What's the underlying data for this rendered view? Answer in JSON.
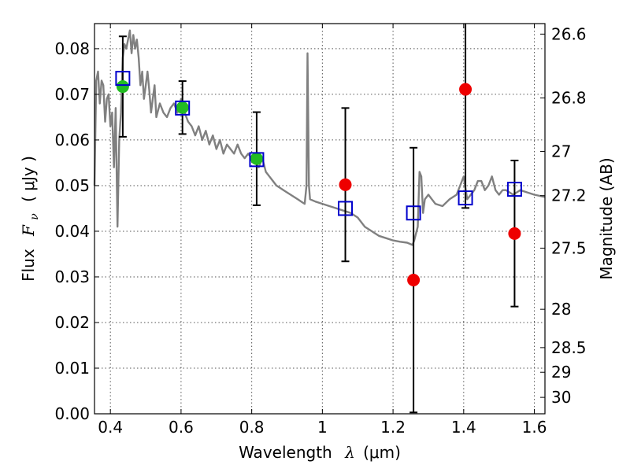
{
  "chart_data": {
    "type": "scatter",
    "title": "",
    "xlabel_text": "Wavelength",
    "xlabel_math": "λ",
    "xlabel_unit": "(μm)",
    "ylabel_text": "Flux",
    "ylabel_math": "F",
    "ylabel_sub": "ν",
    "ylabel_unit": "( μJy )",
    "y2label": "Magnitude (AB)",
    "xlim": [
      0.355,
      1.63
    ],
    "ylim": [
      0.0,
      0.0855
    ],
    "grid": true,
    "x_ticks": [
      {
        "value": 0.4,
        "label": "0.4"
      },
      {
        "value": 0.6,
        "label": "0.6"
      },
      {
        "value": 0.8,
        "label": "0.8"
      },
      {
        "value": 1.0,
        "label": "1"
      },
      {
        "value": 1.2,
        "label": "1.2"
      },
      {
        "value": 1.4,
        "label": "1.4"
      },
      {
        "value": 1.6,
        "label": "1.6"
      }
    ],
    "y_ticks": [
      {
        "value": 0.0,
        "label": "0.00"
      },
      {
        "value": 0.01,
        "label": "0.01"
      },
      {
        "value": 0.02,
        "label": "0.02"
      },
      {
        "value": 0.03,
        "label": "0.03"
      },
      {
        "value": 0.04,
        "label": "0.04"
      },
      {
        "value": 0.05,
        "label": "0.05"
      },
      {
        "value": 0.06,
        "label": "0.06"
      },
      {
        "value": 0.07,
        "label": "0.07"
      },
      {
        "value": 0.08,
        "label": "0.08"
      }
    ],
    "mag_ticks": [
      {
        "label": "26.6",
        "flux": 0.0832
      },
      {
        "label": "26.8",
        "flux": 0.0692
      },
      {
        "label": "27",
        "flux": 0.0575
      },
      {
        "label": "27.2",
        "flux": 0.0478
      },
      {
        "label": "27.5",
        "flux": 0.0363
      },
      {
        "label": "28",
        "flux": 0.0229
      },
      {
        "label": "28.5",
        "flux": 0.0145
      },
      {
        "label": "29",
        "flux": 0.0091
      },
      {
        "label": "30",
        "flux": 0.0036
      }
    ],
    "template_color": "#808080",
    "template_spectrum": [
      [
        0.355,
        0.05
      ],
      [
        0.36,
        0.073
      ],
      [
        0.365,
        0.075
      ],
      [
        0.37,
        0.068
      ],
      [
        0.375,
        0.073
      ],
      [
        0.38,
        0.072
      ],
      [
        0.385,
        0.064
      ],
      [
        0.39,
        0.069
      ],
      [
        0.395,
        0.07
      ],
      [
        0.4,
        0.063
      ],
      [
        0.405,
        0.066
      ],
      [
        0.41,
        0.054
      ],
      [
        0.415,
        0.067
      ],
      [
        0.42,
        0.041
      ],
      [
        0.425,
        0.06
      ],
      [
        0.43,
        0.066
      ],
      [
        0.435,
        0.078
      ],
      [
        0.44,
        0.081
      ],
      [
        0.445,
        0.08
      ],
      [
        0.45,
        0.082
      ],
      [
        0.455,
        0.084
      ],
      [
        0.46,
        0.079
      ],
      [
        0.465,
        0.083
      ],
      [
        0.47,
        0.08
      ],
      [
        0.475,
        0.082
      ],
      [
        0.48,
        0.078
      ],
      [
        0.485,
        0.072
      ],
      [
        0.49,
        0.075
      ],
      [
        0.495,
        0.069
      ],
      [
        0.5,
        0.072
      ],
      [
        0.505,
        0.075
      ],
      [
        0.51,
        0.071
      ],
      [
        0.515,
        0.066
      ],
      [
        0.52,
        0.069
      ],
      [
        0.525,
        0.072
      ],
      [
        0.53,
        0.065
      ],
      [
        0.54,
        0.068
      ],
      [
        0.55,
        0.066
      ],
      [
        0.56,
        0.065
      ],
      [
        0.57,
        0.067
      ],
      [
        0.58,
        0.068
      ],
      [
        0.59,
        0.066
      ],
      [
        0.6,
        0.069
      ],
      [
        0.61,
        0.066
      ],
      [
        0.62,
        0.064
      ],
      [
        0.63,
        0.063
      ],
      [
        0.64,
        0.061
      ],
      [
        0.65,
        0.063
      ],
      [
        0.66,
        0.06
      ],
      [
        0.67,
        0.062
      ],
      [
        0.68,
        0.059
      ],
      [
        0.69,
        0.061
      ],
      [
        0.7,
        0.058
      ],
      [
        0.71,
        0.06
      ],
      [
        0.72,
        0.057
      ],
      [
        0.73,
        0.059
      ],
      [
        0.74,
        0.058
      ],
      [
        0.75,
        0.057
      ],
      [
        0.76,
        0.059
      ],
      [
        0.77,
        0.057
      ],
      [
        0.78,
        0.056
      ],
      [
        0.79,
        0.057
      ],
      [
        0.8,
        0.056
      ],
      [
        0.81,
        0.055
      ],
      [
        0.82,
        0.054
      ],
      [
        0.83,
        0.056
      ],
      [
        0.84,
        0.053
      ],
      [
        0.85,
        0.052
      ],
      [
        0.86,
        0.051
      ],
      [
        0.87,
        0.05
      ],
      [
        0.88,
        0.0495
      ],
      [
        0.89,
        0.049
      ],
      [
        0.9,
        0.0485
      ],
      [
        0.91,
        0.048
      ],
      [
        0.92,
        0.0475
      ],
      [
        0.93,
        0.047
      ],
      [
        0.94,
        0.0465
      ],
      [
        0.95,
        0.046
      ],
      [
        0.955,
        0.05
      ],
      [
        0.958,
        0.079
      ],
      [
        0.962,
        0.05
      ],
      [
        0.965,
        0.047
      ],
      [
        0.98,
        0.0465
      ],
      [
        1.0,
        0.046
      ],
      [
        1.02,
        0.0455
      ],
      [
        1.04,
        0.045
      ],
      [
        1.06,
        0.0445
      ],
      [
        1.08,
        0.044
      ],
      [
        1.1,
        0.043
      ],
      [
        1.12,
        0.041
      ],
      [
        1.14,
        0.04
      ],
      [
        1.16,
        0.039
      ],
      [
        1.18,
        0.0385
      ],
      [
        1.2,
        0.038
      ],
      [
        1.22,
        0.0377
      ],
      [
        1.24,
        0.0375
      ],
      [
        1.255,
        0.037
      ],
      [
        1.26,
        0.038
      ],
      [
        1.27,
        0.041
      ],
      [
        1.275,
        0.053
      ],
      [
        1.28,
        0.052
      ],
      [
        1.285,
        0.044
      ],
      [
        1.29,
        0.047
      ],
      [
        1.3,
        0.048
      ],
      [
        1.31,
        0.047
      ],
      [
        1.32,
        0.046
      ],
      [
        1.34,
        0.0455
      ],
      [
        1.36,
        0.047
      ],
      [
        1.38,
        0.048
      ],
      [
        1.39,
        0.05
      ],
      [
        1.4,
        0.052
      ],
      [
        1.41,
        0.047
      ],
      [
        1.42,
        0.048
      ],
      [
        1.43,
        0.049
      ],
      [
        1.44,
        0.051
      ],
      [
        1.45,
        0.051
      ],
      [
        1.46,
        0.049
      ],
      [
        1.47,
        0.05
      ],
      [
        1.48,
        0.052
      ],
      [
        1.49,
        0.049
      ],
      [
        1.5,
        0.048
      ],
      [
        1.51,
        0.049
      ],
      [
        1.52,
        0.049
      ],
      [
        1.54,
        0.048
      ],
      [
        1.56,
        0.049
      ],
      [
        1.58,
        0.0485
      ],
      [
        1.6,
        0.048
      ],
      [
        1.63,
        0.0475
      ]
    ],
    "model_color": "#0000cc",
    "model_points": [
      {
        "x": 0.435,
        "y": 0.0735
      },
      {
        "x": 0.604,
        "y": 0.067
      },
      {
        "x": 0.814,
        "y": 0.0557
      },
      {
        "x": 1.065,
        "y": 0.045
      },
      {
        "x": 1.258,
        "y": 0.044
      },
      {
        "x": 1.405,
        "y": 0.0473
      },
      {
        "x": 1.544,
        "y": 0.0492
      }
    ],
    "detections": [
      {
        "x": 0.435,
        "y": 0.0717,
        "err": 0.011,
        "color": "#22bb22"
      },
      {
        "x": 0.604,
        "y": 0.0671,
        "err": 0.0058,
        "color": "#22bb22"
      },
      {
        "x": 0.814,
        "y": 0.0559,
        "err": 0.0102,
        "color": "#22bb22"
      },
      {
        "x": 1.065,
        "y": 0.0502,
        "err": 0.0168,
        "color": "#ee0000"
      },
      {
        "x": 1.258,
        "y": 0.0293,
        "err": 0.029,
        "color": "#ee0000"
      },
      {
        "x": 1.405,
        "y": 0.0711,
        "err": 0.026,
        "color": "#ee0000"
      },
      {
        "x": 1.544,
        "y": 0.0395,
        "err": 0.016,
        "color": "#ee0000"
      }
    ]
  }
}
